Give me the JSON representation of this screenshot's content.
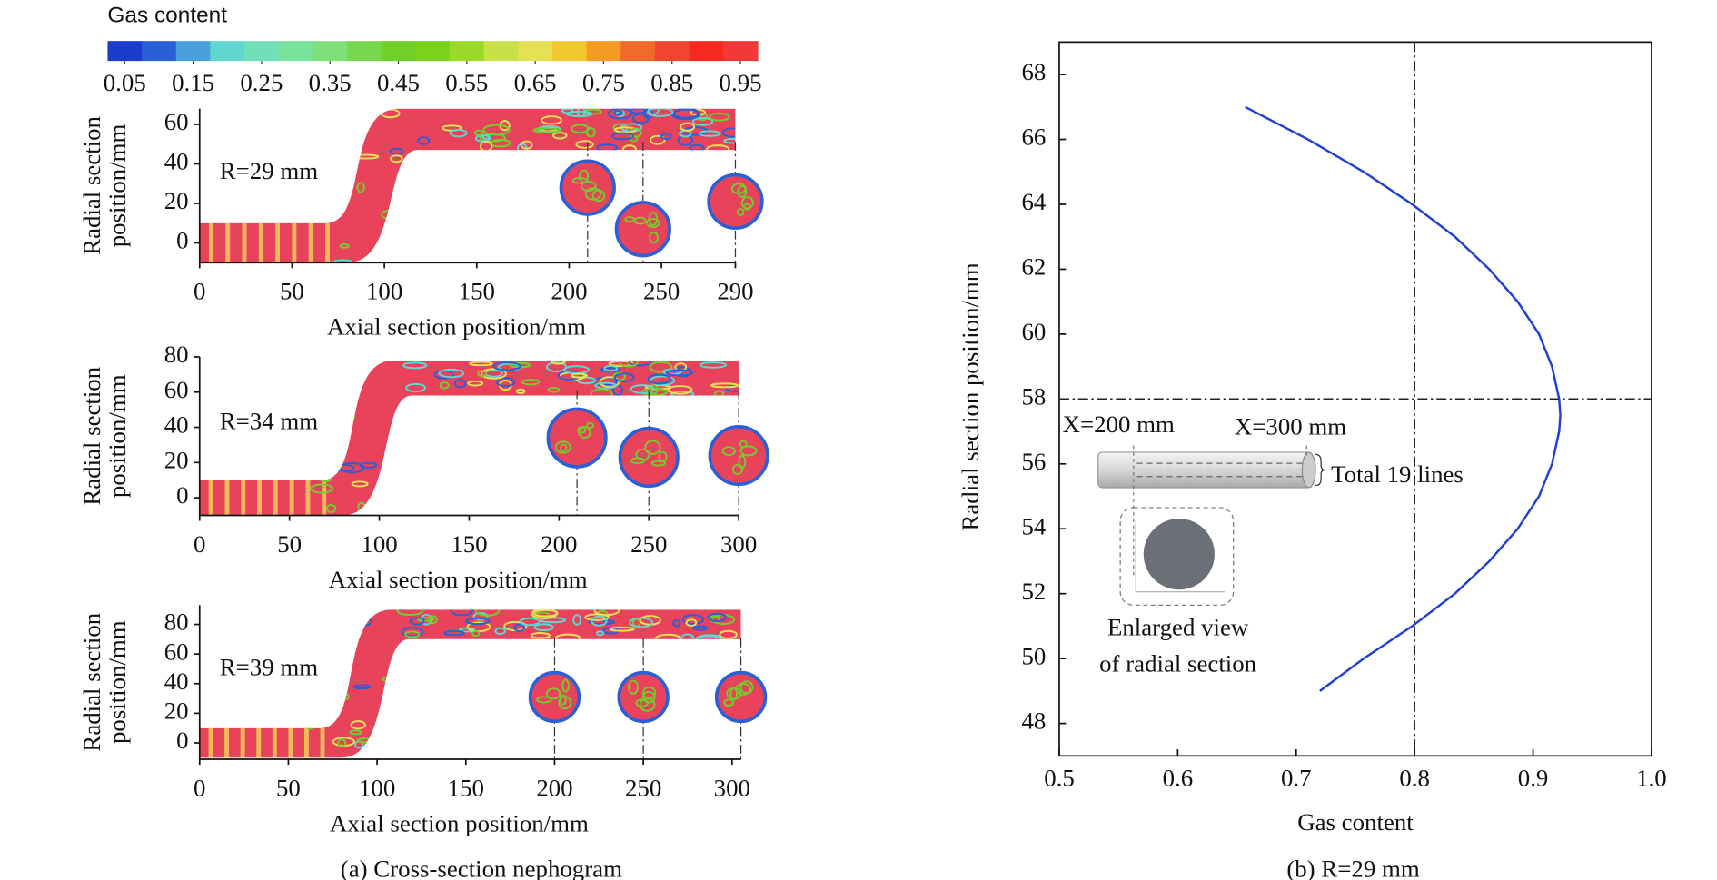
{
  "colorbar": {
    "title": "Gas content",
    "lim": [
      0.025,
      0.975
    ],
    "ticks": [
      0.05,
      0.15,
      0.25,
      0.35,
      0.45,
      0.55,
      0.65,
      0.75,
      0.85,
      0.95
    ],
    "colors": [
      "#1a3ec9",
      "#2a5fd8",
      "#4aa0dc",
      "#5fd6d0",
      "#6fe0b8",
      "#78e39a",
      "#7fe07a",
      "#77d64d",
      "#6fd02a",
      "#79d21e",
      "#9ad82a",
      "#c8e04a",
      "#e6e055",
      "#f0c830",
      "#f59a25",
      "#f06a2a",
      "#f04530",
      "#f52a20",
      "#f03a3a"
    ]
  },
  "chart_data": [
    {
      "type": "contour",
      "annotation": "R=29 mm",
      "xlabel": "Axial section position/mm",
      "ylabel": [
        "Radial section",
        "position/mm"
      ],
      "xlim": [
        0,
        290
      ],
      "ylim": [
        -10,
        68
      ],
      "xticks": [
        0,
        50,
        100,
        150,
        200,
        250,
        290
      ],
      "yticks": [
        0,
        20,
        40,
        60
      ]
    },
    {
      "type": "contour",
      "annotation": "R=34 mm",
      "xlabel": "Axial section position/mm",
      "ylabel": [
        "Radial section",
        "position/mm"
      ],
      "xlim": [
        0,
        300
      ],
      "ylim": [
        -10,
        80
      ],
      "xticks": [
        0,
        50,
        100,
        150,
        200,
        250,
        300
      ],
      "yticks": [
        0,
        20,
        40,
        60,
        80
      ]
    },
    {
      "type": "contour",
      "annotation": "R=39 mm",
      "xlabel": "Axial section position/mm",
      "ylabel": [
        "Radial section",
        "position/mm"
      ],
      "xlim": [
        0,
        305
      ],
      "ylim": [
        -11,
        93
      ],
      "xticks": [
        0,
        50,
        100,
        150,
        200,
        250,
        300
      ],
      "yticks": [
        0,
        20,
        40,
        60,
        80
      ]
    },
    {
      "type": "line",
      "xlabel": "Gas content",
      "ylabel": "Radial section position/mm",
      "xlim": [
        0.5,
        1.0
      ],
      "ylim": [
        47,
        69
      ],
      "xticks": [
        0.5,
        0.6,
        0.7,
        0.8,
        0.9,
        {
          "value": 1.0,
          "label": "1.0"
        }
      ],
      "yticks": [
        48,
        50,
        52,
        54,
        56,
        58,
        60,
        62,
        64,
        66,
        68
      ],
      "reference_lines": {
        "x": 0.8,
        "y": 58
      },
      "annotations": [
        "X=200 mm",
        "X=300 mm",
        "Total 19 lines",
        "Enlarged view",
        "of radial section"
      ],
      "series": [
        {
          "color": "#1f3fd6",
          "x": [
            0.72,
            0.757,
            0.798,
            0.834,
            0.863,
            0.887,
            0.905,
            0.916,
            0.922,
            0.923,
            0.922,
            0.916,
            0.905,
            0.887,
            0.863,
            0.834,
            0.798,
            0.757,
            0.71,
            0.657
          ],
          "values": [
            49,
            50,
            51,
            52,
            53,
            54,
            55,
            56,
            57,
            57.5,
            58,
            59,
            60,
            61,
            62,
            63,
            64,
            65,
            66,
            67
          ]
        }
      ]
    }
  ],
  "captions": [
    "(a) Cross-section nephogram",
    "(b) R=29 mm"
  ]
}
